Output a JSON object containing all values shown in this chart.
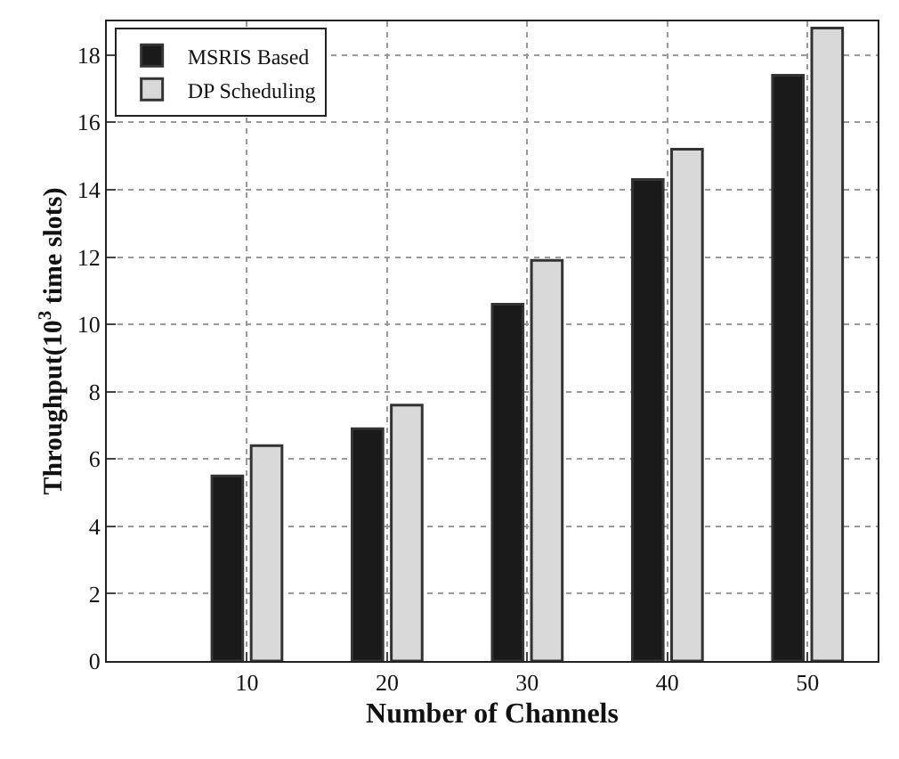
{
  "chart_data": {
    "type": "bar",
    "xlabel": "Number of Channels",
    "ylabel": "Throughput(10$^{3}$ time slots)",
    "x": [
      10,
      20,
      30,
      40,
      50
    ],
    "xlim": [
      0,
      55
    ],
    "xticks": [
      10,
      20,
      30,
      40,
      50
    ],
    "ylim": [
      0,
      19
    ],
    "yticks": [
      0,
      2,
      4,
      6,
      8,
      10,
      12,
      14,
      16,
      18
    ],
    "series": [
      {
        "name": "MSRIS Based",
        "color": "#1a1a1a",
        "values": [
          5.5,
          6.9,
          10.6,
          14.3,
          17.4
        ]
      },
      {
        "name": "DP Scheduling",
        "color": "#d9d9d9",
        "values": [
          6.4,
          7.6,
          11.9,
          15.2,
          18.8
        ]
      }
    ],
    "grid": true,
    "legend": "top left"
  }
}
